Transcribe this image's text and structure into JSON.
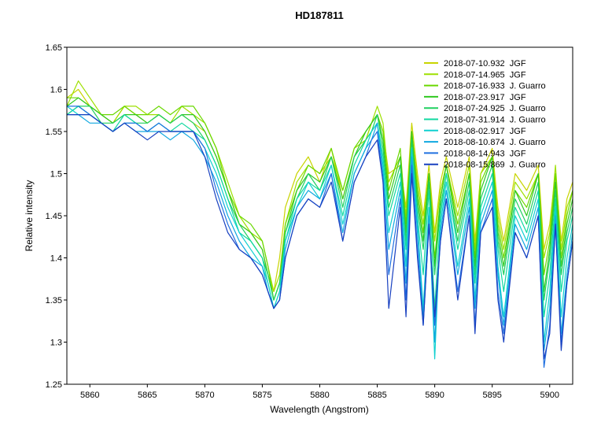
{
  "chart_data": {
    "type": "line",
    "title": "HD187811",
    "xlabel": "Wavelength (Angstrom)",
    "ylabel": "Relative intensity",
    "xlim": [
      5858,
      5902
    ],
    "ylim": [
      1.25,
      1.65
    ],
    "xticks": [
      5860,
      5865,
      5870,
      5875,
      5880,
      5885,
      5890,
      5895,
      5900
    ],
    "yticks": [
      1.25,
      1.3,
      1.35,
      1.4,
      1.45,
      1.5,
      1.55,
      1.6,
      1.65
    ],
    "xtick_labels": [
      "5860",
      "5865",
      "5870",
      "5875",
      "5880",
      "5885",
      "5890",
      "5895",
      "5900"
    ],
    "ytick_labels": [
      "1.25",
      "1.3",
      "1.35",
      "1.4",
      "1.45",
      "1.5",
      "1.55",
      "1.6",
      "1.65"
    ],
    "grid": false,
    "legend_position": "top-right",
    "x": [
      5858,
      5859,
      5860,
      5861,
      5862,
      5863,
      5864,
      5865,
      5866,
      5867,
      5868,
      5869,
      5870,
      5871,
      5872,
      5873,
      5874,
      5875,
      5875.5,
      5876,
      5876.5,
      5877,
      5878,
      5879,
      5880,
      5881,
      5882,
      5883,
      5884,
      5884.5,
      5885,
      5885.5,
      5886,
      5887,
      5887.5,
      5888,
      5888.5,
      5889,
      5889.5,
      5890,
      5890.5,
      5891,
      5892,
      5893,
      5893.5,
      5894,
      5895,
      5895.5,
      5896,
      5897,
      5898,
      5899,
      5899.5,
      5900,
      5900.5,
      5901,
      5901.5,
      5902
    ],
    "series": [
      {
        "name": "2018-07-10.932  JGF",
        "color": "#c8d400",
        "values": [
          1.59,
          1.6,
          1.58,
          1.57,
          1.56,
          1.58,
          1.57,
          1.56,
          1.57,
          1.56,
          1.57,
          1.56,
          1.55,
          1.52,
          1.48,
          1.44,
          1.43,
          1.41,
          1.38,
          1.36,
          1.4,
          1.46,
          1.5,
          1.52,
          1.49,
          1.53,
          1.47,
          1.52,
          1.54,
          1.56,
          1.57,
          1.55,
          1.5,
          1.51,
          1.46,
          1.56,
          1.5,
          1.45,
          1.51,
          1.43,
          1.49,
          1.52,
          1.46,
          1.52,
          1.42,
          1.5,
          1.53,
          1.46,
          1.42,
          1.5,
          1.48,
          1.51,
          1.41,
          1.44,
          1.5,
          1.42,
          1.47,
          1.49
        ]
      },
      {
        "name": "2018-07-14.965  JGF",
        "color": "#9ee000",
        "values": [
          1.58,
          1.61,
          1.59,
          1.57,
          1.56,
          1.58,
          1.58,
          1.57,
          1.57,
          1.56,
          1.58,
          1.57,
          1.56,
          1.53,
          1.49,
          1.45,
          1.43,
          1.42,
          1.39,
          1.36,
          1.38,
          1.44,
          1.49,
          1.51,
          1.5,
          1.52,
          1.48,
          1.53,
          1.54,
          1.56,
          1.58,
          1.56,
          1.49,
          1.52,
          1.45,
          1.55,
          1.49,
          1.44,
          1.5,
          1.42,
          1.48,
          1.51,
          1.45,
          1.51,
          1.41,
          1.5,
          1.52,
          1.45,
          1.41,
          1.49,
          1.47,
          1.5,
          1.4,
          1.43,
          1.51,
          1.41,
          1.46,
          1.48
        ]
      },
      {
        "name": "2018-07-16.933  J. Guarro",
        "color": "#6ad800",
        "values": [
          1.59,
          1.59,
          1.58,
          1.57,
          1.57,
          1.58,
          1.57,
          1.57,
          1.58,
          1.57,
          1.58,
          1.58,
          1.56,
          1.53,
          1.48,
          1.45,
          1.44,
          1.42,
          1.39,
          1.35,
          1.37,
          1.44,
          1.48,
          1.51,
          1.5,
          1.53,
          1.48,
          1.53,
          1.55,
          1.56,
          1.57,
          1.55,
          1.48,
          1.53,
          1.44,
          1.55,
          1.48,
          1.43,
          1.5,
          1.4,
          1.47,
          1.51,
          1.44,
          1.5,
          1.4,
          1.49,
          1.52,
          1.44,
          1.4,
          1.48,
          1.46,
          1.5,
          1.38,
          1.42,
          1.5,
          1.4,
          1.45,
          1.48
        ]
      },
      {
        "name": "2018-07-23.917  JGF",
        "color": "#30c820",
        "values": [
          1.58,
          1.59,
          1.58,
          1.57,
          1.56,
          1.57,
          1.57,
          1.56,
          1.57,
          1.56,
          1.57,
          1.57,
          1.55,
          1.52,
          1.48,
          1.44,
          1.43,
          1.41,
          1.38,
          1.35,
          1.37,
          1.43,
          1.48,
          1.5,
          1.49,
          1.52,
          1.47,
          1.52,
          1.55,
          1.56,
          1.57,
          1.54,
          1.47,
          1.52,
          1.43,
          1.55,
          1.47,
          1.42,
          1.5,
          1.39,
          1.47,
          1.51,
          1.43,
          1.5,
          1.39,
          1.48,
          1.52,
          1.43,
          1.39,
          1.48,
          1.45,
          1.5,
          1.36,
          1.41,
          1.49,
          1.39,
          1.44,
          1.47
        ]
      },
      {
        "name": "2018-07-24.925  J. Guarro",
        "color": "#20d060",
        "values": [
          1.57,
          1.58,
          1.58,
          1.56,
          1.56,
          1.57,
          1.56,
          1.56,
          1.57,
          1.56,
          1.57,
          1.56,
          1.54,
          1.51,
          1.47,
          1.44,
          1.42,
          1.4,
          1.38,
          1.35,
          1.37,
          1.43,
          1.47,
          1.5,
          1.48,
          1.52,
          1.46,
          1.52,
          1.54,
          1.55,
          1.57,
          1.53,
          1.46,
          1.51,
          1.42,
          1.54,
          1.46,
          1.41,
          1.49,
          1.38,
          1.46,
          1.5,
          1.42,
          1.49,
          1.38,
          1.47,
          1.51,
          1.42,
          1.38,
          1.47,
          1.44,
          1.49,
          1.35,
          1.4,
          1.48,
          1.38,
          1.43,
          1.46
        ]
      },
      {
        "name": "2018-07-31.914  J. Guarro",
        "color": "#10d8a0",
        "values": [
          1.57,
          1.58,
          1.57,
          1.56,
          1.55,
          1.57,
          1.56,
          1.55,
          1.56,
          1.55,
          1.56,
          1.55,
          1.54,
          1.51,
          1.47,
          1.43,
          1.42,
          1.4,
          1.37,
          1.34,
          1.36,
          1.42,
          1.47,
          1.49,
          1.48,
          1.51,
          1.45,
          1.51,
          1.54,
          1.55,
          1.56,
          1.52,
          1.45,
          1.5,
          1.41,
          1.53,
          1.45,
          1.38,
          1.48,
          1.34,
          1.45,
          1.5,
          1.41,
          1.48,
          1.37,
          1.46,
          1.5,
          1.41,
          1.36,
          1.46,
          1.43,
          1.48,
          1.33,
          1.38,
          1.47,
          1.36,
          1.42,
          1.45
        ]
      },
      {
        "name": "2018-08-02.917  JGF",
        "color": "#10d0d0",
        "values": [
          1.58,
          1.57,
          1.57,
          1.56,
          1.55,
          1.56,
          1.56,
          1.55,
          1.56,
          1.55,
          1.55,
          1.55,
          1.53,
          1.5,
          1.46,
          1.43,
          1.41,
          1.39,
          1.37,
          1.34,
          1.36,
          1.42,
          1.46,
          1.49,
          1.47,
          1.51,
          1.44,
          1.5,
          1.53,
          1.55,
          1.56,
          1.51,
          1.43,
          1.49,
          1.39,
          1.53,
          1.44,
          1.34,
          1.46,
          1.28,
          1.44,
          1.49,
          1.39,
          1.47,
          1.35,
          1.45,
          1.49,
          1.39,
          1.33,
          1.45,
          1.42,
          1.47,
          1.3,
          1.36,
          1.46,
          1.33,
          1.4,
          1.44
        ]
      },
      {
        "name": "2018-08-10.874  J. Guarro",
        "color": "#10a8e0",
        "values": [
          1.57,
          1.57,
          1.56,
          1.56,
          1.55,
          1.56,
          1.55,
          1.55,
          1.55,
          1.54,
          1.55,
          1.54,
          1.52,
          1.49,
          1.45,
          1.42,
          1.4,
          1.39,
          1.36,
          1.34,
          1.35,
          1.41,
          1.46,
          1.48,
          1.47,
          1.5,
          1.43,
          1.5,
          1.53,
          1.54,
          1.56,
          1.5,
          1.41,
          1.48,
          1.37,
          1.52,
          1.43,
          1.33,
          1.45,
          1.3,
          1.43,
          1.48,
          1.38,
          1.46,
          1.34,
          1.44,
          1.48,
          1.38,
          1.32,
          1.44,
          1.41,
          1.46,
          1.29,
          1.34,
          1.45,
          1.31,
          1.38,
          1.43
        ]
      },
      {
        "name": "2018-08-14.943  JGF",
        "color": "#2070e0",
        "values": [
          1.58,
          1.58,
          1.57,
          1.56,
          1.55,
          1.56,
          1.56,
          1.55,
          1.56,
          1.55,
          1.55,
          1.55,
          1.53,
          1.48,
          1.44,
          1.41,
          1.4,
          1.38,
          1.36,
          1.34,
          1.35,
          1.4,
          1.45,
          1.47,
          1.46,
          1.5,
          1.42,
          1.49,
          1.52,
          1.54,
          1.55,
          1.49,
          1.38,
          1.47,
          1.35,
          1.51,
          1.41,
          1.32,
          1.44,
          1.32,
          1.42,
          1.47,
          1.36,
          1.45,
          1.32,
          1.43,
          1.47,
          1.36,
          1.31,
          1.43,
          1.4,
          1.45,
          1.27,
          1.32,
          1.44,
          1.3,
          1.37,
          1.42
        ]
      },
      {
        "name": "2018-08-15.869  J. Guarro",
        "color": "#1840c0",
        "values": [
          1.57,
          1.57,
          1.57,
          1.56,
          1.55,
          1.56,
          1.55,
          1.54,
          1.55,
          1.55,
          1.55,
          1.55,
          1.52,
          1.47,
          1.43,
          1.41,
          1.4,
          1.38,
          1.36,
          1.34,
          1.35,
          1.4,
          1.45,
          1.47,
          1.46,
          1.49,
          1.42,
          1.49,
          1.52,
          1.53,
          1.54,
          1.49,
          1.34,
          1.46,
          1.33,
          1.5,
          1.4,
          1.32,
          1.44,
          1.33,
          1.42,
          1.47,
          1.35,
          1.45,
          1.31,
          1.43,
          1.46,
          1.35,
          1.3,
          1.43,
          1.4,
          1.45,
          1.28,
          1.31,
          1.44,
          1.29,
          1.37,
          1.42
        ]
      }
    ]
  }
}
